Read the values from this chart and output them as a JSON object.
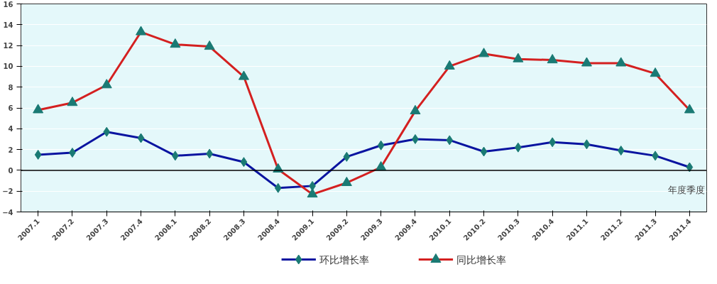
{
  "chart_data": {
    "type": "line",
    "xlabel": "年度季度",
    "categories": [
      "2007.1",
      "2007.2",
      "2007.3",
      "2007.4",
      "2008.1",
      "2008.2",
      "2008.3",
      "2008.4",
      "2009.1",
      "2009.2",
      "2009.3",
      "2009.4",
      "2010.1",
      "2010.2",
      "2010.3",
      "2010.4",
      "2011.1",
      "2011.2",
      "2011.3",
      "2011.4"
    ],
    "series": [
      {
        "name": "环比增长率",
        "color": "#0a14a0",
        "marker": "diamond",
        "values": [
          1.5,
          1.7,
          3.7,
          3.1,
          1.4,
          1.6,
          0.8,
          -1.7,
          -1.5,
          1.3,
          2.4,
          3.0,
          2.9,
          1.8,
          2.2,
          2.7,
          2.5,
          1.9,
          1.4,
          0.3
        ]
      },
      {
        "name": "同比增长率",
        "color": "#d42020",
        "marker": "triangle",
        "values": [
          5.8,
          6.5,
          8.2,
          13.3,
          12.1,
          11.9,
          9.0,
          0.1,
          -2.3,
          -1.2,
          0.3,
          5.7,
          10.0,
          11.2,
          10.7,
          10.6,
          10.3,
          10.3,
          9.3,
          5.8
        ]
      }
    ],
    "ylim": [
      -4,
      16
    ],
    "yticks": [
      -4,
      -2,
      0,
      2,
      4,
      6,
      8,
      10,
      12,
      14,
      16
    ],
    "ref_lines": [
      {
        "axis": "y",
        "value": 0,
        "color": "#000000"
      }
    ],
    "grid": "y",
    "legend": "bottom",
    "line_style": "solid"
  }
}
